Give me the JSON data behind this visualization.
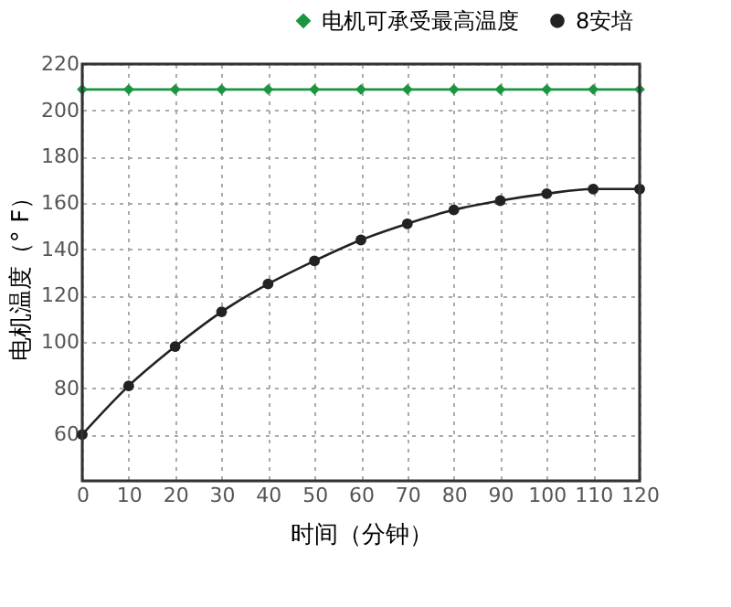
{
  "chart_data": {
    "type": "line",
    "xlabel": "时间（分钟）",
    "ylabel": "电机温度（° F）",
    "x": [
      0,
      10,
      20,
      30,
      40,
      50,
      60,
      70,
      80,
      90,
      100,
      110,
      120
    ],
    "series": [
      {
        "name": "电机可承受最高温度",
        "color": "#1a9641",
        "marker": "diamond",
        "values": [
          209,
          209,
          209,
          209,
          209,
          209,
          209,
          209,
          209,
          209,
          209,
          209,
          209
        ]
      },
      {
        "name": "8安培",
        "color": "#222222",
        "marker": "circle",
        "values": [
          60,
          81,
          98,
          113,
          125,
          135,
          144,
          151,
          157,
          161,
          164,
          166,
          166
        ]
      }
    ],
    "xlim": [
      0,
      120
    ],
    "xticks": [
      0,
      10,
      20,
      30,
      40,
      50,
      60,
      70,
      80,
      90,
      100,
      110,
      120
    ],
    "ylim": [
      40,
      220
    ],
    "yticks": [
      60,
      80,
      100,
      120,
      140,
      160,
      180,
      200,
      220
    ],
    "grid": true,
    "legend": "top right",
    "line_style": "solid"
  }
}
